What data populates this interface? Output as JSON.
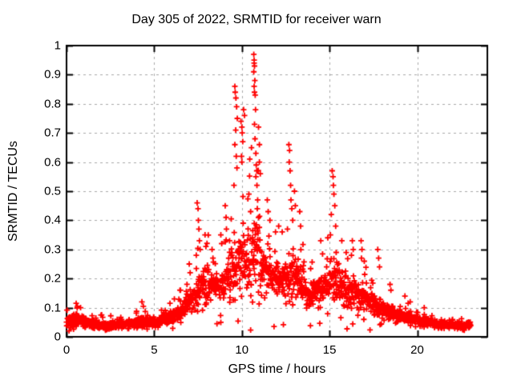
{
  "chart": {
    "colors": {
      "marker": "#ff0000",
      "grid": "#a9a9a9",
      "border": "#000000",
      "background": "#ffffff",
      "text": "#000000"
    }
  },
  "chart_data": {
    "type": "scatter",
    "title": "Day 305 of 2022, SRMTID for receiver warn",
    "xlabel": "GPS time / hours",
    "ylabel": "SRMTID / TECUs",
    "series_name": "SRMTID",
    "marker": "plus",
    "grid": "dashed",
    "xlim": [
      0,
      24
    ],
    "ylim": [
      0,
      1
    ],
    "xticks": [
      0,
      5,
      10,
      15,
      20
    ],
    "xtick_labels": [
      "0",
      "5",
      "10",
      "15",
      "20"
    ],
    "yticks": [
      0,
      0.1,
      0.2,
      0.3,
      0.4,
      0.5,
      0.6,
      0.7,
      0.8,
      0.9,
      1
    ],
    "ytick_labels": [
      "0",
      "0.1",
      "0.2",
      "0.3",
      "0.4",
      "0.5",
      "0.6",
      "0.7",
      "0.8",
      "0.9",
      "1"
    ],
    "time_range_hours": [
      0,
      23.05
    ],
    "peak": {
      "t": 10.7,
      "v": 0.97
    },
    "n_points_estimate": 1900,
    "seed": 305,
    "band_envelope": [
      [
        0.0,
        0.025,
        0.055,
        0.1
      ],
      [
        0.7,
        0.03,
        0.06,
        0.115
      ],
      [
        1.5,
        0.02,
        0.045,
        0.085
      ],
      [
        2.5,
        0.018,
        0.04,
        0.075
      ],
      [
        3.5,
        0.02,
        0.045,
        0.085
      ],
      [
        4.4,
        0.025,
        0.055,
        0.11
      ],
      [
        5.2,
        0.03,
        0.05,
        0.09
      ],
      [
        6.0,
        0.04,
        0.07,
        0.13
      ],
      [
        6.6,
        0.05,
        0.09,
        0.18
      ],
      [
        7.2,
        0.06,
        0.13,
        0.3
      ],
      [
        7.7,
        0.08,
        0.17,
        0.4
      ],
      [
        8.2,
        0.09,
        0.18,
        0.34
      ],
      [
        8.7,
        0.09,
        0.17,
        0.33
      ],
      [
        9.2,
        0.1,
        0.2,
        0.44
      ],
      [
        9.7,
        0.09,
        0.24,
        0.62
      ],
      [
        10.2,
        0.1,
        0.26,
        0.66
      ],
      [
        10.75,
        0.12,
        0.3,
        0.78
      ],
      [
        11.2,
        0.11,
        0.24,
        0.52
      ],
      [
        11.7,
        0.1,
        0.21,
        0.4
      ],
      [
        12.2,
        0.1,
        0.19,
        0.36
      ],
      [
        12.75,
        0.1,
        0.22,
        0.52
      ],
      [
        13.2,
        0.1,
        0.2,
        0.42
      ],
      [
        13.7,
        0.07,
        0.14,
        0.27
      ],
      [
        14.2,
        0.08,
        0.16,
        0.31
      ],
      [
        14.75,
        0.09,
        0.18,
        0.35
      ],
      [
        15.25,
        0.1,
        0.21,
        0.48
      ],
      [
        15.7,
        0.09,
        0.18,
        0.34
      ],
      [
        16.3,
        0.08,
        0.16,
        0.31
      ],
      [
        16.8,
        0.07,
        0.14,
        0.28
      ],
      [
        17.3,
        0.06,
        0.12,
        0.25
      ],
      [
        17.8,
        0.05,
        0.1,
        0.21
      ],
      [
        18.4,
        0.04,
        0.085,
        0.16
      ],
      [
        19.0,
        0.04,
        0.075,
        0.135
      ],
      [
        19.6,
        0.035,
        0.065,
        0.115
      ],
      [
        20.2,
        0.03,
        0.055,
        0.095
      ],
      [
        21.0,
        0.025,
        0.045,
        0.08
      ],
      [
        22.0,
        0.02,
        0.04,
        0.07
      ],
      [
        23.05,
        0.02,
        0.042,
        0.075
      ]
    ],
    "notable_points": [
      [
        0.55,
        0.115
      ],
      [
        0.62,
        0.105
      ],
      [
        0.8,
        0.1
      ],
      [
        4.3,
        0.12
      ],
      [
        4.38,
        0.105
      ],
      [
        5.9,
        0.115
      ],
      [
        6.15,
        0.13
      ],
      [
        6.5,
        0.16
      ],
      [
        7.0,
        0.25
      ],
      [
        7.05,
        0.22
      ],
      [
        7.45,
        0.46
      ],
      [
        7.5,
        0.44
      ],
      [
        7.52,
        0.4
      ],
      [
        7.55,
        0.37
      ],
      [
        7.58,
        0.33
      ],
      [
        7.62,
        0.3
      ],
      [
        7.4,
        0.28
      ],
      [
        7.9,
        0.35
      ],
      [
        7.95,
        0.31
      ],
      [
        8.3,
        0.3
      ],
      [
        8.35,
        0.27
      ],
      [
        8.8,
        0.35
      ],
      [
        8.85,
        0.32
      ],
      [
        9.05,
        0.45
      ],
      [
        9.1,
        0.41
      ],
      [
        9.12,
        0.37
      ],
      [
        9.3,
        0.33
      ],
      [
        9.6,
        0.86
      ],
      [
        9.62,
        0.84
      ],
      [
        9.66,
        0.82
      ],
      [
        9.7,
        0.79
      ],
      [
        9.74,
        0.75
      ],
      [
        9.65,
        0.71
      ],
      [
        9.6,
        0.66
      ],
      [
        9.68,
        0.62
      ],
      [
        9.72,
        0.58
      ],
      [
        9.55,
        0.52
      ],
      [
        9.95,
        0.74
      ],
      [
        10.0,
        0.72
      ],
      [
        10.02,
        0.7
      ],
      [
        10.05,
        0.67
      ],
      [
        9.98,
        0.62
      ],
      [
        10.0,
        0.6
      ],
      [
        10.1,
        0.78
      ],
      [
        10.15,
        0.76
      ],
      [
        10.45,
        0.61
      ],
      [
        10.4,
        0.49
      ],
      [
        10.5,
        0.43
      ],
      [
        10.68,
        0.97
      ],
      [
        10.7,
        0.95
      ],
      [
        10.7,
        0.94
      ],
      [
        10.72,
        0.93
      ],
      [
        10.68,
        0.91
      ],
      [
        10.74,
        0.88
      ],
      [
        10.7,
        0.86
      ],
      [
        10.72,
        0.84
      ],
      [
        10.76,
        0.83
      ],
      [
        10.78,
        0.78
      ],
      [
        10.72,
        0.73
      ],
      [
        10.75,
        0.68
      ],
      [
        10.8,
        0.63
      ],
      [
        10.82,
        0.59
      ],
      [
        10.85,
        0.57
      ],
      [
        10.8,
        0.55
      ],
      [
        10.86,
        0.52
      ],
      [
        10.9,
        0.47
      ],
      [
        10.88,
        0.44
      ],
      [
        10.95,
        0.41
      ],
      [
        10.95,
        0.72
      ],
      [
        11.0,
        0.66
      ],
      [
        11.0,
        0.6
      ],
      [
        11.05,
        0.56
      ],
      [
        11.45,
        0.47
      ],
      [
        11.5,
        0.43
      ],
      [
        11.6,
        0.4
      ],
      [
        12.1,
        0.38
      ],
      [
        12.3,
        0.36
      ],
      [
        12.68,
        0.66
      ],
      [
        12.72,
        0.64
      ],
      [
        12.7,
        0.6
      ],
      [
        12.75,
        0.57
      ],
      [
        12.78,
        0.52
      ],
      [
        12.8,
        0.47
      ],
      [
        12.85,
        0.44
      ],
      [
        12.9,
        0.4
      ],
      [
        12.6,
        0.37
      ],
      [
        13.0,
        0.5
      ],
      [
        13.05,
        0.45
      ],
      [
        13.3,
        0.43
      ],
      [
        13.35,
        0.38
      ],
      [
        14.5,
        0.33
      ],
      [
        14.9,
        0.34
      ],
      [
        15.15,
        0.57
      ],
      [
        15.2,
        0.55
      ],
      [
        15.22,
        0.52
      ],
      [
        15.25,
        0.49
      ],
      [
        15.3,
        0.45
      ],
      [
        15.1,
        0.42
      ],
      [
        15.35,
        0.38
      ],
      [
        15.05,
        0.35
      ],
      [
        15.7,
        0.33
      ],
      [
        16.3,
        0.33
      ],
      [
        16.35,
        0.3
      ],
      [
        16.25,
        0.28
      ],
      [
        16.8,
        0.33
      ],
      [
        16.85,
        0.3
      ],
      [
        16.82,
        0.27
      ],
      [
        17.75,
        0.3
      ],
      [
        17.8,
        0.27
      ],
      [
        17.85,
        0.24
      ],
      [
        18.45,
        0.18
      ],
      [
        18.5,
        0.16
      ],
      [
        19.3,
        0.14
      ],
      [
        19.6,
        0.12
      ],
      [
        20.4,
        0.1
      ]
    ]
  }
}
